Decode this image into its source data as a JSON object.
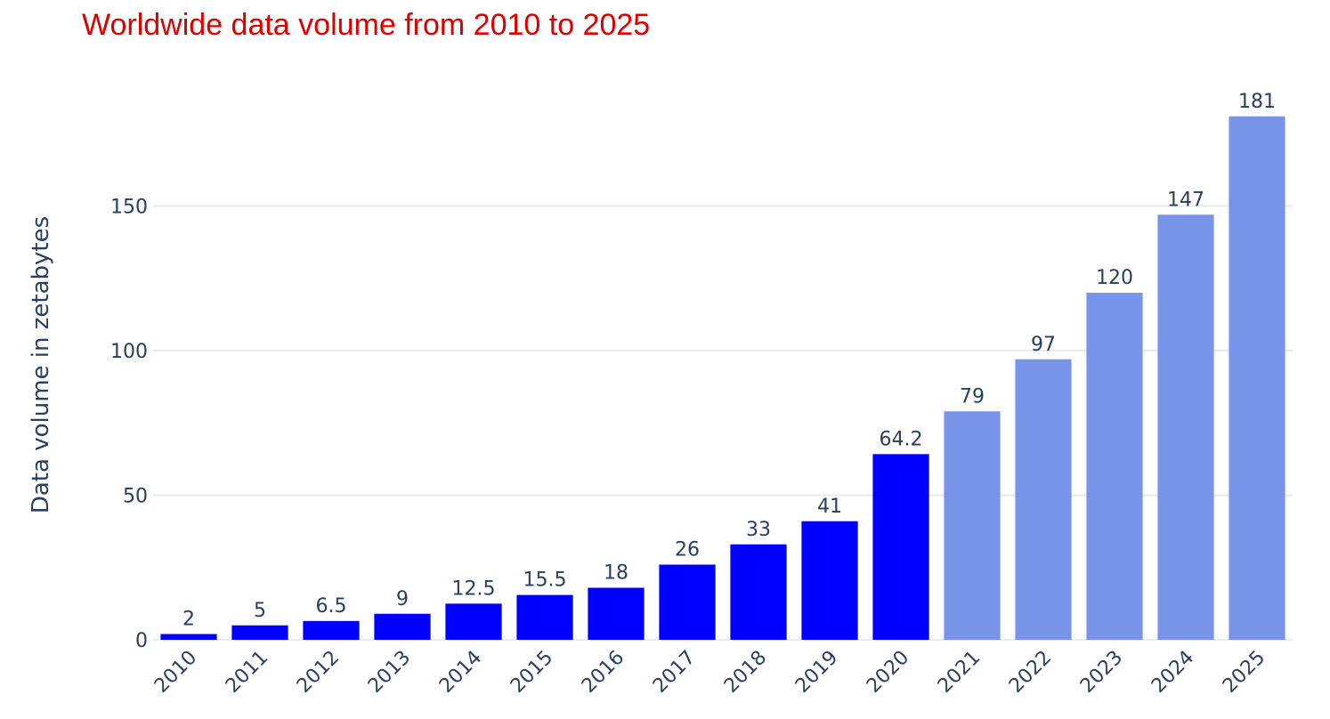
{
  "chart_data": {
    "type": "bar",
    "title": "Worldwide data volume from 2010 to 2025",
    "xlabel": "",
    "ylabel": "Data volume in zetabytes",
    "categories": [
      "2010",
      "2011",
      "2012",
      "2013",
      "2014",
      "2015",
      "2016",
      "2017",
      "2018",
      "2019",
      "2020",
      "2021",
      "2022",
      "2023",
      "2024",
      "2025"
    ],
    "values": [
      2,
      5,
      6.5,
      9,
      12.5,
      15.5,
      18,
      26,
      33,
      41,
      64.2,
      79,
      97,
      120,
      147,
      181
    ],
    "value_labels": [
      "2",
      "5",
      "6.5",
      "9",
      "12.5",
      "15.5",
      "18",
      "26",
      "33",
      "41",
      "64.2",
      "79",
      "97",
      "120",
      "147",
      "181"
    ],
    "bar_colors": [
      "#0000ff",
      "#0000ff",
      "#0000ff",
      "#0000ff",
      "#0000ff",
      "#0000ff",
      "#0000ff",
      "#0000ff",
      "#0000ff",
      "#0000ff",
      "#0000ff",
      "#7794e8",
      "#7794e8",
      "#7794e8",
      "#7794e8",
      "#7794e8"
    ],
    "y_ticks": [
      0,
      50,
      100,
      150
    ],
    "ylim": [
      0,
      190
    ],
    "grid": true,
    "legend": "none",
    "colors": {
      "title": "#dd0000",
      "text": "#2a3f5f",
      "grid": "#e6eaf1"
    }
  }
}
